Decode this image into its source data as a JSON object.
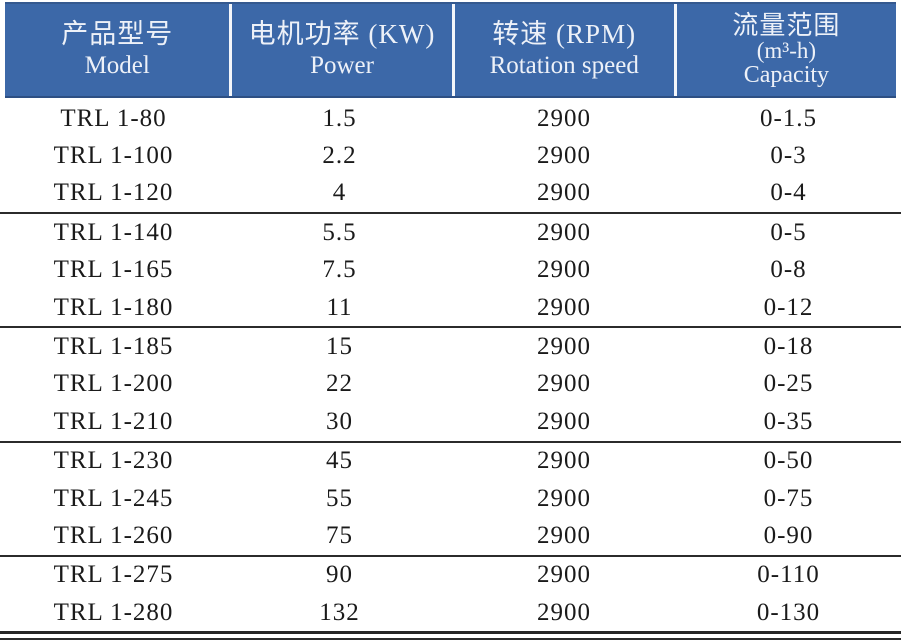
{
  "table": {
    "header": {
      "background": "#3c68a8",
      "text_color": "#edf1f8",
      "columns": [
        {
          "zh": "产品型号",
          "en": "Model"
        },
        {
          "zh": "电机功率 (KW)",
          "en": "Power"
        },
        {
          "zh": "转速 (RPM)",
          "en": "Rotation speed"
        },
        {
          "zh": "流量范围",
          "unit": "(m³-h)",
          "en": "Capacity"
        }
      ]
    },
    "group_size": 3,
    "rows": [
      {
        "model": "TRL 1-80",
        "power": "1.5",
        "speed": "2900",
        "capacity": "0-1.5"
      },
      {
        "model": "TRL 1-100",
        "power": "2.2",
        "speed": "2900",
        "capacity": "0-3"
      },
      {
        "model": "TRL 1-120",
        "power": "4",
        "speed": "2900",
        "capacity": "0-4"
      },
      {
        "model": "TRL 1-140",
        "power": "5.5",
        "speed": "2900",
        "capacity": "0-5"
      },
      {
        "model": "TRL 1-165",
        "power": "7.5",
        "speed": "2900",
        "capacity": "0-8"
      },
      {
        "model": "TRL 1-180",
        "power": "11",
        "speed": "2900",
        "capacity": "0-12"
      },
      {
        "model": "TRL 1-185",
        "power": "15",
        "speed": "2900",
        "capacity": "0-18"
      },
      {
        "model": "TRL 1-200",
        "power": "22",
        "speed": "2900",
        "capacity": "0-25"
      },
      {
        "model": "TRL 1-210",
        "power": "30",
        "speed": "2900",
        "capacity": "0-35"
      },
      {
        "model": "TRL 1-230",
        "power": "45",
        "speed": "2900",
        "capacity": "0-50"
      },
      {
        "model": "TRL 1-245",
        "power": "55",
        "speed": "2900",
        "capacity": "0-75"
      },
      {
        "model": "TRL 1-260",
        "power": "75",
        "speed": "2900",
        "capacity": "0-90"
      },
      {
        "model": "TRL 1-275",
        "power": "90",
        "speed": "2900",
        "capacity": "0-110"
      },
      {
        "model": "TRL 1-280",
        "power": "132",
        "speed": "2900",
        "capacity": "0-130"
      }
    ]
  }
}
